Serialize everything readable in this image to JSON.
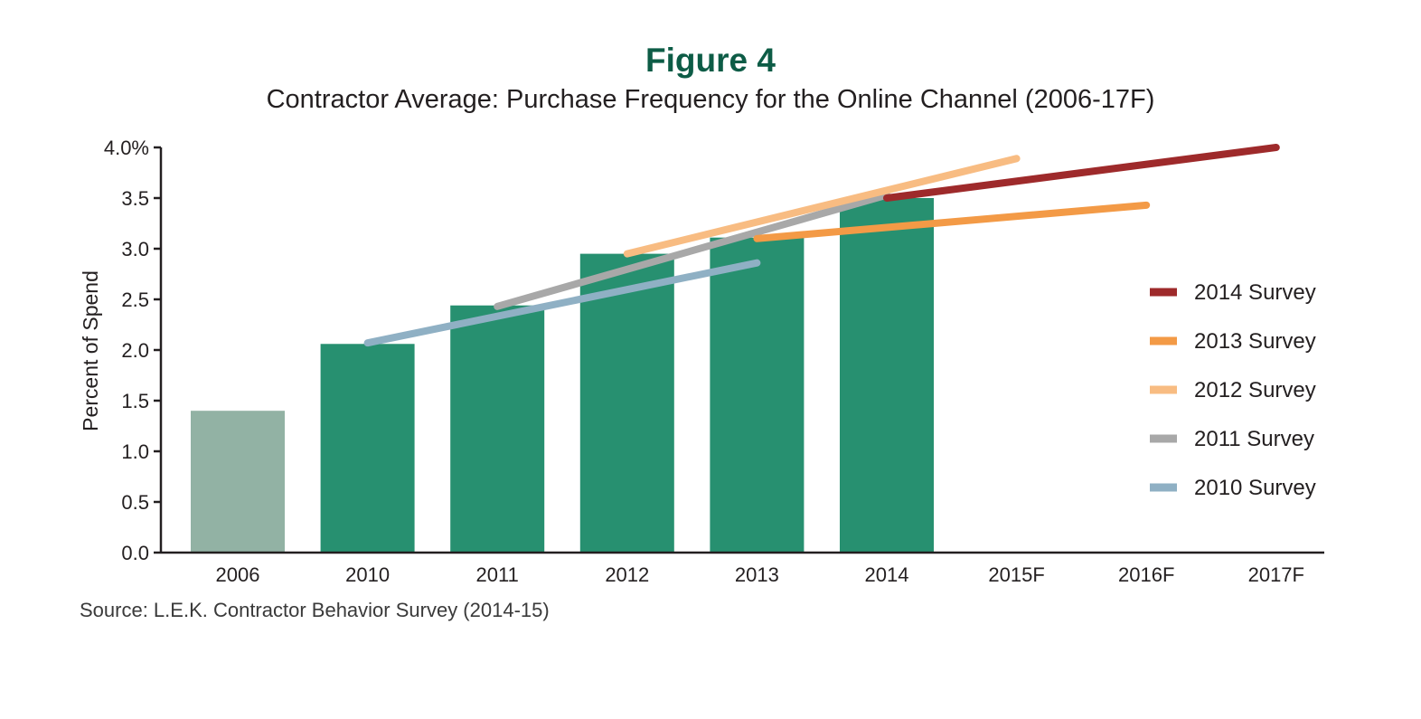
{
  "figure_label": "Figure 4",
  "chart_data": {
    "type": "bar",
    "title": "Contractor Average: Purchase Frequency for the Online Channel (2006-17F)",
    "xlabel": "",
    "ylabel": "Percent of Spend",
    "ylim": [
      0,
      4.0
    ],
    "yticks": [
      "4.0%",
      "3.5",
      "3.0",
      "2.5",
      "2.0",
      "1.5",
      "1.0",
      "0.5",
      "0.0"
    ],
    "categories": [
      "2006",
      "2010",
      "2011",
      "2012",
      "2013",
      "2014",
      "2015F",
      "2016F",
      "2017F"
    ],
    "values": [
      1.4,
      2.06,
      2.44,
      2.95,
      3.11,
      3.5,
      null,
      null,
      null
    ],
    "bar_colors": [
      "#92b2a4",
      "#279070",
      "#279070",
      "#279070",
      "#279070",
      "#279070",
      "#279070",
      "#279070",
      "#279070"
    ],
    "legend_position": "right",
    "series": [
      {
        "name": "2014 Survey",
        "type": "line",
        "color": "#9e2a2b",
        "points": [
          [
            "2014",
            3.5
          ],
          [
            "2017F",
            4.0
          ]
        ]
      },
      {
        "name": "2013 Survey",
        "type": "line",
        "color": "#f39a46",
        "points": [
          [
            "2013",
            3.1
          ],
          [
            "2016F",
            3.43
          ]
        ]
      },
      {
        "name": "2012 Survey",
        "type": "line",
        "color": "#f8bc82",
        "points": [
          [
            "2012",
            2.95
          ],
          [
            "2015F",
            3.89
          ]
        ]
      },
      {
        "name": "2011 Survey",
        "type": "line",
        "color": "#a8a8a8",
        "points": [
          [
            "2011",
            2.43
          ],
          [
            "2014",
            3.53
          ]
        ]
      },
      {
        "name": "2010 Survey",
        "type": "line",
        "color": "#8fb0c4",
        "points": [
          [
            "2010",
            2.07
          ],
          [
            "2013",
            2.86
          ]
        ]
      }
    ]
  },
  "source": "Source: L.E.K. Contractor Behavior Survey (2014-15)"
}
